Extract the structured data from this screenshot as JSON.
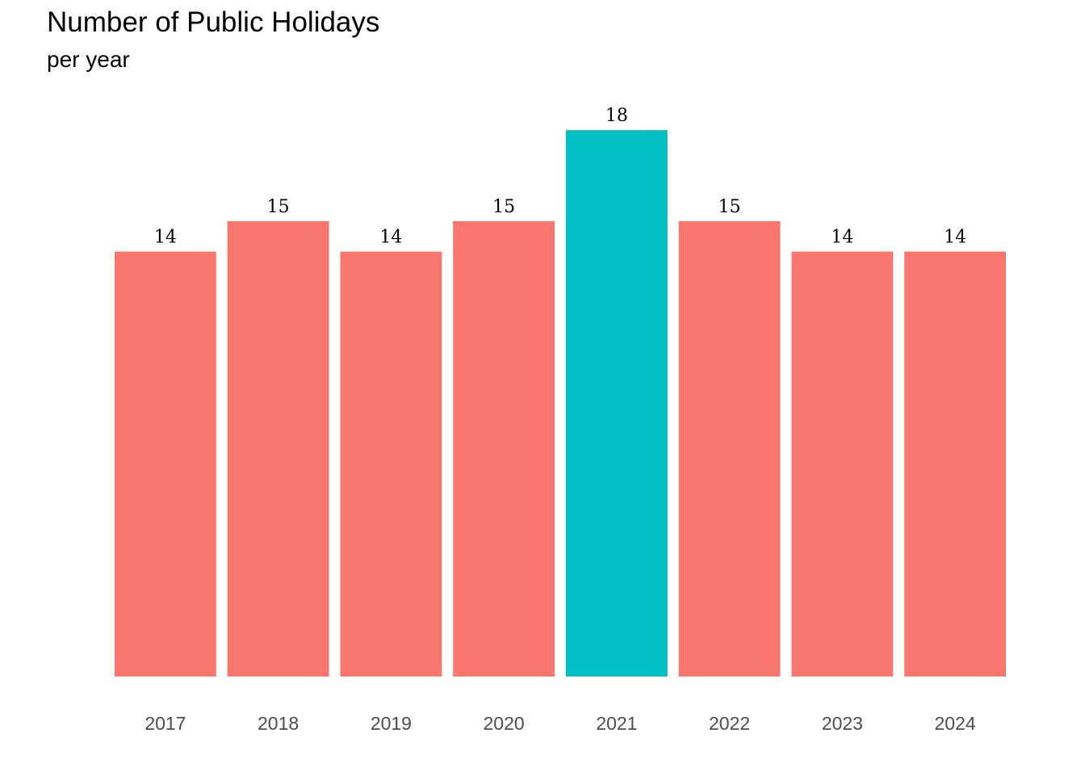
{
  "chart_data": {
    "type": "bar",
    "title": "Number of Public Holidays",
    "subtitle": "per year",
    "xlabel": "",
    "ylabel": "",
    "categories": [
      "2017",
      "2018",
      "2019",
      "2020",
      "2021",
      "2022",
      "2023",
      "2024"
    ],
    "values": [
      14,
      15,
      14,
      15,
      18,
      15,
      14,
      14
    ],
    "data_labels": [
      "14",
      "15",
      "14",
      "15",
      "18",
      "15",
      "14",
      "14"
    ],
    "ylim": [
      0,
      18
    ],
    "grid": false,
    "legend": "none",
    "highlight_category": "2021",
    "colors": {
      "default": "#F8766D",
      "highlight": "#00BFC4"
    }
  }
}
